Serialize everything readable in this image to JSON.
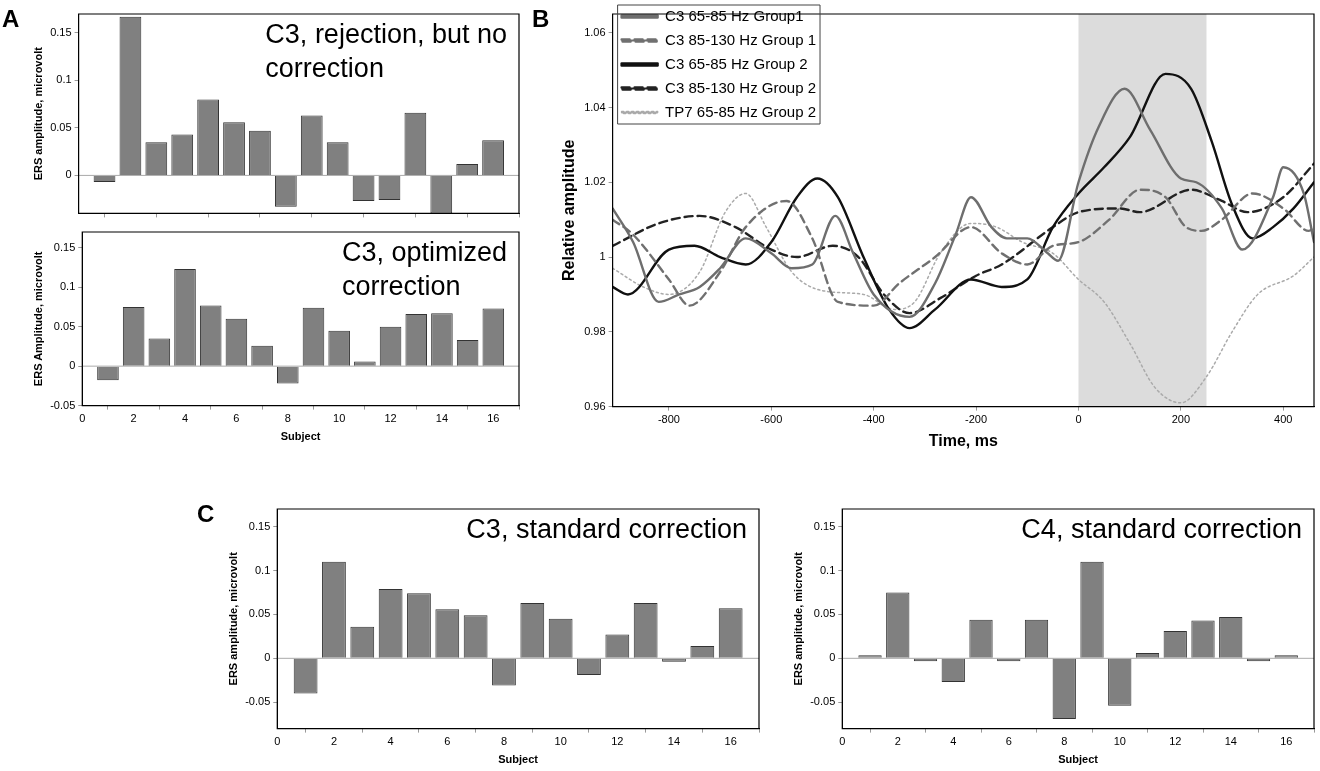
{
  "chart_data": [
    {
      "type": "bar",
      "title": "C3, rejection, but no correction",
      "ylabel": "ERS amplitude, microvolt",
      "annotations": [
        "A"
      ],
      "color": "#808080",
      "tick_labels": "y",
      "x": [
        1,
        2,
        3,
        4,
        5,
        6,
        7,
        8,
        9,
        10,
        11,
        12,
        13,
        14,
        15,
        16
      ],
      "values": [
        -0.007,
        0.167,
        0.035,
        0.043,
        0.08,
        0.056,
        0.047,
        -0.033,
        0.063,
        0.035,
        -0.027,
        -0.026,
        0.066,
        -0.04,
        0.012,
        0.037
      ],
      "xlim": [
        0,
        17
      ],
      "xticks": [
        0,
        2,
        4,
        6,
        8,
        10,
        12,
        14,
        16
      ],
      "ylim": [
        -0.04,
        0.17
      ],
      "yticks": [
        0,
        0.05,
        0.1,
        0.15
      ],
      "ref_lines": [
        {
          "axis": "y",
          "value": 0,
          "color": "#aaaaaa"
        }
      ]
    },
    {
      "type": "bar",
      "title": "C3, optimized correction",
      "xlabel": "Subject",
      "ylabel": "ERS Amplitude, microvolt",
      "color": "#808080",
      "x": [
        1,
        2,
        3,
        4,
        5,
        6,
        7,
        8,
        9,
        10,
        11,
        12,
        13,
        14,
        15,
        16
      ],
      "values": [
        -0.018,
        0.075,
        0.035,
        0.123,
        0.077,
        0.06,
        0.026,
        -0.022,
        0.074,
        0.045,
        0.006,
        0.05,
        0.066,
        0.067,
        0.033,
        0.073
      ],
      "xlim": [
        0,
        17
      ],
      "xticks": [
        0,
        2,
        4,
        6,
        8,
        10,
        12,
        14,
        16
      ],
      "ylim": [
        -0.05,
        0.17
      ],
      "yticks": [
        -0.05,
        0,
        0.05,
        0.1,
        0.15
      ],
      "ref_lines": [
        {
          "axis": "y",
          "value": 0,
          "color": "#aaaaaa"
        }
      ]
    },
    {
      "type": "line",
      "xlabel": "Time, ms",
      "ylabel": "Relative amplitude",
      "annotations": [
        "B"
      ],
      "legend": "top left",
      "marker": "none",
      "xlim": [
        -910,
        460
      ],
      "xticks": [
        -800,
        -600,
        -400,
        -200,
        0,
        200,
        400
      ],
      "ylim": [
        0.96,
        1.065
      ],
      "yticks": [
        0.96,
        0.98,
        1,
        1.02,
        1.04,
        1.06
      ],
      "bands": [
        {
          "axis": "x",
          "from": 0,
          "to": 250,
          "color": "#dcdcdc"
        }
      ],
      "series": [
        {
          "name": "C3 65-85 Hz Group1",
          "color": "#6e6e6e",
          "line_style": "solid",
          "x": [
            -910,
            -870,
            -820,
            -780,
            -740,
            -700,
            -650,
            -600,
            -560,
            -520,
            -475,
            -440,
            -400,
            -330,
            -280,
            -240,
            -210,
            -170,
            -140,
            -100,
            -60,
            -40,
            0,
            40,
            90,
            140,
            200,
            230,
            280,
            320,
            380,
            400,
            440,
            460
          ],
          "values": [
            1.013,
            1.004,
            0.988,
            0.99,
            0.992,
            0.997,
            1.005,
            1.001,
            0.997,
            0.998,
            1.011,
            1.001,
            0.99,
            0.984,
            0.993,
            1.006,
            1.016,
            1.008,
            1.005,
            1.005,
            1.001,
            0.999,
            1.02,
            1.035,
            1.045,
            1.034,
            1.021,
            1.02,
            1.013,
            1.002,
            1.016,
            1.024,
            1.017,
            1.004
          ]
        },
        {
          "name": "C3 85-130 Hz Group 1",
          "color": "#707070",
          "line_style": "dashed",
          "x": [
            -910,
            -870,
            -800,
            -760,
            -700,
            -650,
            -570,
            -520,
            -470,
            -400,
            -350,
            -280,
            -210,
            -150,
            -100,
            -50,
            0,
            60,
            120,
            170,
            210,
            240,
            280,
            340,
            400,
            450,
            460
          ],
          "values": [
            1.01,
            1.006,
            0.994,
            0.987,
            0.996,
            1.008,
            1.015,
            1.005,
            0.988,
            0.987,
            0.993,
            1.0,
            1.008,
            1.001,
            0.998,
            1.003,
            1.004,
            1.01,
            1.018,
            1.016,
            1.008,
            1.007,
            1.01,
            1.017,
            1.013,
            1.007,
            1.008
          ]
        },
        {
          "name": "C3 65-85 Hz Group 2",
          "color": "#111111",
          "line_style": "solid",
          "x": [
            -910,
            -880,
            -800,
            -750,
            -700,
            -650,
            -600,
            -550,
            -510,
            -470,
            -420,
            -370,
            -330,
            -280,
            -210,
            -150,
            -100,
            -50,
            0,
            50,
            100,
            170,
            220,
            260,
            300,
            340,
            380,
            420,
            460
          ],
          "values": [
            0.992,
            0.99,
            1.002,
            1.003,
            1.0,
            0.998,
            1.004,
            1.016,
            1.021,
            1.016,
            1.0,
            0.986,
            0.981,
            0.986,
            0.994,
            0.992,
            0.994,
            1.008,
            1.017,
            1.024,
            1.032,
            1.049,
            1.045,
            1.031,
            1.014,
            1.005,
            1.008,
            1.013,
            1.02
          ]
        },
        {
          "name": "C3 85-130 Hz Group 2",
          "color": "#222222",
          "line_style": "dashed",
          "x": [
            -910,
            -820,
            -740,
            -670,
            -600,
            -550,
            -480,
            -430,
            -380,
            -330,
            -270,
            -200,
            -150,
            -50,
            0,
            80,
            120,
            220,
            280,
            330,
            400,
            460
          ],
          "values": [
            1.003,
            1.009,
            1.011,
            1.008,
            1.002,
            1.0,
            1.003,
            1.0,
            0.99,
            0.985,
            0.989,
            0.995,
            0.998,
            1.008,
            1.012,
            1.013,
            1.012,
            1.018,
            1.015,
            1.012,
            1.016,
            1.025
          ]
        },
        {
          "name": "TP7 65-85 Hz Group 2",
          "color": "#aaaaaa",
          "line_style": "dotted",
          "x": [
            -910,
            -850,
            -800,
            -740,
            -690,
            -650,
            -610,
            -560,
            -500,
            -420,
            -360,
            -320,
            -270,
            -210,
            -160,
            -110,
            -50,
            0,
            50,
            100,
            150,
            200,
            250,
            300,
            350,
            420,
            460
          ],
          "values": [
            0.997,
            0.992,
            0.99,
            0.996,
            1.012,
            1.017,
            1.008,
            0.996,
            0.991,
            0.99,
            0.986,
            0.988,
            1.001,
            1.009,
            1.008,
            1.004,
            1.001,
            0.994,
            0.988,
            0.977,
            0.965,
            0.961,
            0.968,
            0.98,
            0.99,
            0.995,
            1.0
          ]
        }
      ]
    },
    {
      "type": "bar",
      "title": "C3, standard correction",
      "xlabel": "Subject",
      "ylabel": "ERS amplitude, microvolt",
      "annotations": [
        "C"
      ],
      "color": "#808080",
      "x": [
        1,
        2,
        3,
        4,
        5,
        6,
        7,
        8,
        9,
        10,
        11,
        12,
        13,
        14,
        15,
        16
      ],
      "values": [
        -0.04,
        0.11,
        0.036,
        0.079,
        0.074,
        0.056,
        0.049,
        -0.031,
        0.063,
        0.045,
        -0.019,
        0.027,
        0.063,
        -0.004,
        0.014,
        0.057
      ],
      "xlim": [
        0,
        17
      ],
      "xticks": [
        0,
        2,
        4,
        6,
        8,
        10,
        12,
        14,
        16
      ],
      "ylim": [
        -0.08,
        0.17
      ],
      "yticks": [
        -0.05,
        0,
        0.05,
        0.1,
        0.15
      ],
      "ref_lines": [
        {
          "axis": "y",
          "value": 0,
          "color": "#aaaaaa"
        }
      ]
    },
    {
      "type": "bar",
      "title": "C4, standard correction",
      "xlabel": "Subject",
      "ylabel": "ERS amplitude, microvolt",
      "color": "#808080",
      "x": [
        1,
        2,
        3,
        4,
        5,
        6,
        7,
        8,
        9,
        10,
        11,
        12,
        13,
        14,
        15,
        16
      ],
      "values": [
        0.001,
        0.075,
        -0.003,
        -0.027,
        0.044,
        -0.001,
        0.044,
        -0.069,
        0.11,
        -0.054,
        0.006,
        0.031,
        0.043,
        0.047,
        -0.003,
        0.001
      ],
      "xlim": [
        0,
        17
      ],
      "xticks": [
        0,
        2,
        4,
        6,
        8,
        10,
        12,
        14,
        16
      ],
      "ylim": [
        -0.08,
        0.17
      ],
      "yticks": [
        -0.05,
        0,
        0.05,
        0.1,
        0.15
      ],
      "ref_lines": [
        {
          "axis": "y",
          "value": 0,
          "color": "#aaaaaa"
        }
      ]
    }
  ]
}
